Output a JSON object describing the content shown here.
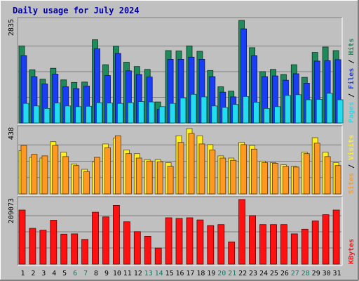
{
  "title": "Daily usage for July 2024",
  "colors": {
    "background": "#c0c0c0",
    "plot_bg": "#c0c0c0",
    "hits": "#1f8a5a",
    "files": "#1a3ef5",
    "pages": "#22ddf0",
    "visits": "#ffee22",
    "sites": "#ff9922",
    "kbytes": "#ff1111",
    "title": "#0000a0",
    "weekend_label": "#00806a",
    "weekday_label": "#000000"
  },
  "chart_data": {
    "type": "bar",
    "title": "Daily usage for July 2024",
    "days": [
      "1",
      "2",
      "3",
      "4",
      "5",
      "6",
      "7",
      "8",
      "9",
      "10",
      "11",
      "12",
      "13",
      "14",
      "15",
      "16",
      "17",
      "18",
      "19",
      "20",
      "21",
      "22",
      "23",
      "24",
      "25",
      "26",
      "27",
      "28",
      "29",
      "30",
      "31"
    ],
    "weekend_days": [
      "6",
      "7",
      "13",
      "14",
      "20",
      "21",
      "27",
      "28"
    ],
    "panels": [
      {
        "id": "hits-files-pages",
        "ymax_label": "2835",
        "ymax": 2835,
        "series": [
          {
            "name": "Hits",
            "color_key": "hits",
            "values": [
              2130,
              1470,
              1210,
              1510,
              1190,
              1120,
              1130,
              2300,
              1610,
              2120,
              1680,
              1560,
              1480,
              580,
              2000,
              1990,
              2130,
              1980,
              1450,
              1000,
              880,
              2835,
              2080,
              1420,
              1480,
              1340,
              1610,
              1260,
              1950,
              2100,
              2000
            ]
          },
          {
            "name": "Files",
            "color_key": "files",
            "values": [
              1860,
              1280,
              1080,
              1350,
              1000,
              950,
              1020,
              2050,
              1310,
              1920,
              1440,
              1340,
              1270,
              380,
              1760,
              1760,
              1820,
              1760,
              1280,
              850,
              720,
              2600,
              1860,
              1280,
              1300,
              1180,
              1360,
              1100,
              1710,
              1720,
              1750
            ]
          },
          {
            "name": "Pages",
            "color_key": "pages",
            "values": [
              540,
              470,
              400,
              550,
              470,
              450,
              460,
              560,
              550,
              540,
              560,
              590,
              580,
              450,
              540,
              690,
              790,
              720,
              470,
              430,
              510,
              730,
              570,
              400,
              450,
              760,
              780,
              640,
              650,
              820,
              640
            ]
          }
        ],
        "labels": [
          {
            "text": "Pages",
            "color_key": "pages"
          },
          {
            "text": " / ",
            "color_key": "weekday_label"
          },
          {
            "text": "Files",
            "color_key": "files"
          },
          {
            "text": " / ",
            "color_key": "weekday_label"
          },
          {
            "text": "Hits",
            "color_key": "hits"
          }
        ]
      },
      {
        "id": "sites-visits",
        "ymax_label": "438",
        "ymax": 438,
        "series": [
          {
            "name": "Visits",
            "color_key": "visits",
            "values": [
              290,
              245,
              240,
              350,
              280,
              200,
              165,
              215,
              335,
              375,
              295,
              270,
              230,
              230,
              210,
              390,
              438,
              390,
              330,
              255,
              240,
              345,
              325,
              220,
              210,
              195,
              185,
              280,
              377,
              280,
              210
            ]
          },
          {
            "name": "Sites",
            "color_key": "sites",
            "values": [
              325,
              265,
              255,
              325,
              250,
              190,
              150,
              245,
              310,
              390,
              270,
              240,
              220,
              215,
              185,
              345,
              405,
              335,
              295,
              240,
              225,
              330,
              300,
              210,
              205,
              185,
              180,
              270,
              340,
              250,
              190
            ]
          }
        ],
        "labels": [
          {
            "text": "Sites",
            "color_key": "sites"
          },
          {
            "text": " / ",
            "color_key": "weekday_label"
          },
          {
            "text": "Visits",
            "color_key": "visits"
          }
        ]
      },
      {
        "id": "kbytes",
        "ymax_label": "209073",
        "ymax": 209073,
        "series": [
          {
            "name": "KBytes",
            "color_key": "kbytes",
            "values": [
              175000,
              116000,
              110000,
              142000,
              97000,
              98000,
              80000,
              168000,
              153000,
              190000,
              137000,
              105000,
              90000,
              52000,
              150000,
              148000,
              150000,
              143000,
              125000,
              128000,
              72000,
              209073,
              157000,
              128000,
              128000,
              128000,
              98000,
              113000,
              140000,
              160000,
              175000
            ]
          }
        ],
        "labels": [
          {
            "text": "KBytes",
            "color_key": "kbytes"
          }
        ]
      }
    ]
  }
}
